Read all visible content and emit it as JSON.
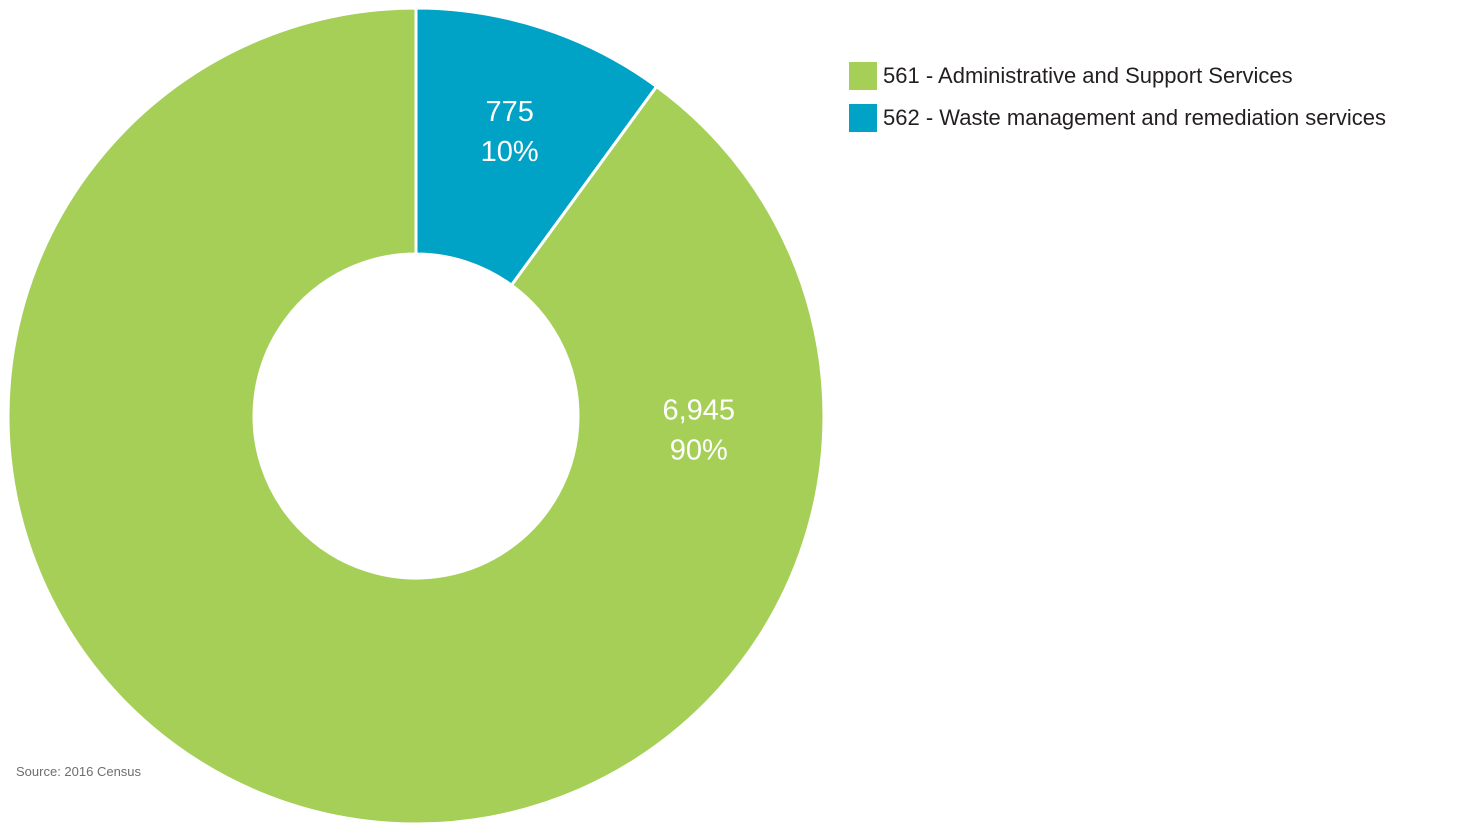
{
  "chart_data": {
    "type": "pie",
    "variant": "donut",
    "slices": [
      {
        "category": "562 - Waste management and remediation services",
        "value": 775,
        "value_label": "775",
        "percent_label": "10%",
        "color": "#00a3c6"
      },
      {
        "category": "561 - Administrative and Support Services",
        "value": 6945,
        "value_label": "6,945",
        "percent_label": "90%",
        "color": "#a5cf57"
      }
    ],
    "legend": {
      "placement": "top-right",
      "items": [
        {
          "label": "561 - Administrative and Support Services",
          "color": "#a5cf57"
        },
        {
          "label": "562 - Waste management and remediation services",
          "color": "#00a3c6"
        }
      ]
    },
    "source": "Source: 2016 Census"
  }
}
